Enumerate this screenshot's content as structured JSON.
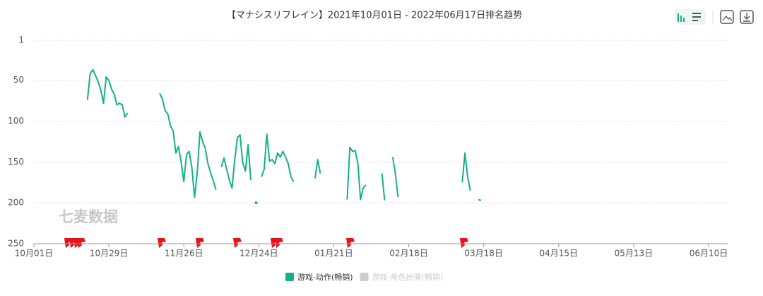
{
  "chart_data": {
    "type": "line",
    "title": "【マナシスリフレイン】2021年10月01日 - 2022年06月17日排名趋势",
    "watermark": "七麦数据",
    "categories": [
      "10月01日",
      null,
      null,
      null,
      null,
      null,
      null,
      null,
      null,
      null,
      null,
      null,
      null,
      null,
      null,
      null,
      null,
      null,
      null,
      null,
      null,
      null,
      null,
      null,
      null,
      null,
      null,
      null,
      "10月29日",
      null,
      null,
      null,
      null,
      null,
      null,
      null,
      null,
      null,
      null,
      null,
      null,
      null,
      null,
      null,
      null,
      null,
      null,
      null,
      null,
      null,
      null,
      null,
      null,
      null,
      null,
      null,
      "11月26日",
      null,
      null,
      null,
      null,
      null,
      null,
      null,
      null,
      null,
      null,
      null,
      null,
      null,
      null,
      null,
      null,
      null,
      null,
      null,
      null,
      null,
      null,
      null,
      null,
      null,
      null,
      null,
      "12月24日",
      null,
      null,
      null,
      null,
      null,
      null,
      null,
      null,
      null,
      null,
      null,
      null,
      null,
      null,
      null,
      null,
      null,
      null,
      null,
      null,
      null,
      null,
      null,
      null,
      null,
      null,
      null,
      "01月21日",
      null,
      null,
      null,
      null,
      null,
      null,
      null,
      null,
      null,
      null,
      null,
      null,
      null,
      null,
      null,
      null,
      null,
      null,
      null,
      null,
      null,
      null,
      null,
      null,
      null,
      null,
      null,
      "02月18日",
      null,
      null,
      null,
      null,
      null,
      null,
      null,
      null,
      null,
      null,
      null,
      null,
      null,
      null,
      null,
      null,
      null,
      null,
      null,
      null,
      null,
      null,
      null,
      null,
      null,
      null,
      null,
      "03月18日",
      null,
      null,
      null,
      null,
      null,
      null,
      null,
      null,
      null,
      null,
      null,
      null,
      null,
      null,
      null,
      null,
      null,
      null,
      null,
      null,
      null,
      null,
      null,
      null,
      null,
      null,
      null,
      "04月15日",
      null,
      null,
      null,
      null,
      null,
      null,
      null,
      null,
      null,
      null,
      null,
      null,
      null,
      null,
      null,
      null,
      null,
      null,
      null,
      null,
      null,
      null,
      null,
      null,
      null,
      null,
      null,
      "05月13日",
      null,
      null,
      null,
      null,
      null,
      null,
      null,
      null,
      null,
      null,
      null,
      null,
      null,
      null,
      null,
      null,
      null,
      null,
      null,
      null,
      null,
      null,
      null,
      null,
      null,
      null,
      null,
      "06月10日",
      null,
      null,
      null,
      null,
      null,
      null,
      null
    ],
    "series": [
      {
        "name": "游戏-动作(畅销)",
        "color": "#13b18a",
        "values": [
          null,
          null,
          null,
          null,
          null,
          null,
          null,
          null,
          null,
          null,
          null,
          null,
          null,
          null,
          null,
          null,
          null,
          null,
          null,
          null,
          74,
          42,
          37,
          44,
          52,
          62,
          78,
          46,
          50,
          61,
          67,
          80,
          78,
          80,
          95,
          90,
          null,
          null,
          null,
          null,
          null,
          null,
          null,
          null,
          null,
          null,
          null,
          66,
          73,
          87,
          91,
          106,
          112,
          139,
          131,
          150,
          174,
          141,
          137,
          157,
          193,
          163,
          113,
          125,
          133,
          152,
          163,
          173,
          184,
          null,
          156,
          145,
          159,
          172,
          182,
          148,
          120,
          117,
          151,
          161,
          129,
          172,
          null,
          200,
          null,
          168,
          159,
          116,
          149,
          147,
          152,
          139,
          144,
          137,
          144,
          152,
          168,
          174,
          null,
          null,
          null,
          null,
          null,
          null,
          null,
          170,
          147,
          164,
          null,
          null,
          null,
          null,
          null,
          null,
          null,
          null,
          null,
          196,
          132,
          137,
          136,
          152,
          196,
          182,
          178,
          null,
          null,
          null,
          null,
          null,
          164,
          197,
          null,
          null,
          144,
          164,
          193,
          null,
          null,
          null,
          null,
          null,
          null,
          null,
          null,
          null,
          null,
          null,
          null,
          null,
          null,
          null,
          null,
          null,
          null,
          null,
          null,
          null,
          null,
          null,
          175,
          139,
          168,
          185,
          null,
          null,
          196,
          197,
          null,
          null,
          null,
          null,
          null,
          null,
          null,
          null,
          null,
          null,
          null,
          null,
          null,
          null,
          null,
          null,
          null,
          null,
          null,
          null,
          null,
          null,
          null,
          null,
          null,
          null,
          null,
          null,
          null,
          null,
          null,
          null,
          null,
          null,
          null,
          null,
          null,
          null,
          null,
          null,
          null,
          null,
          null,
          null,
          null,
          null,
          null,
          null,
          null,
          null,
          null,
          null,
          null,
          null,
          null,
          null,
          null,
          null,
          null,
          null,
          null,
          null,
          null,
          null,
          null,
          null,
          null,
          null,
          null,
          null,
          null,
          null,
          null,
          null,
          null,
          null,
          null,
          null,
          null,
          null,
          null,
          null,
          null,
          null,
          null,
          null,
          null,
          null,
          null,
          null,
          null,
          null
        ]
      },
      {
        "name": "游戏-角色扮演(畅销)",
        "color": "#cccccc",
        "hidden": true
      }
    ],
    "ylim": [
      1,
      250
    ],
    "yticks": [
      1,
      50,
      100,
      150,
      200,
      250
    ],
    "y_inverted": true,
    "grid": true
  }
}
